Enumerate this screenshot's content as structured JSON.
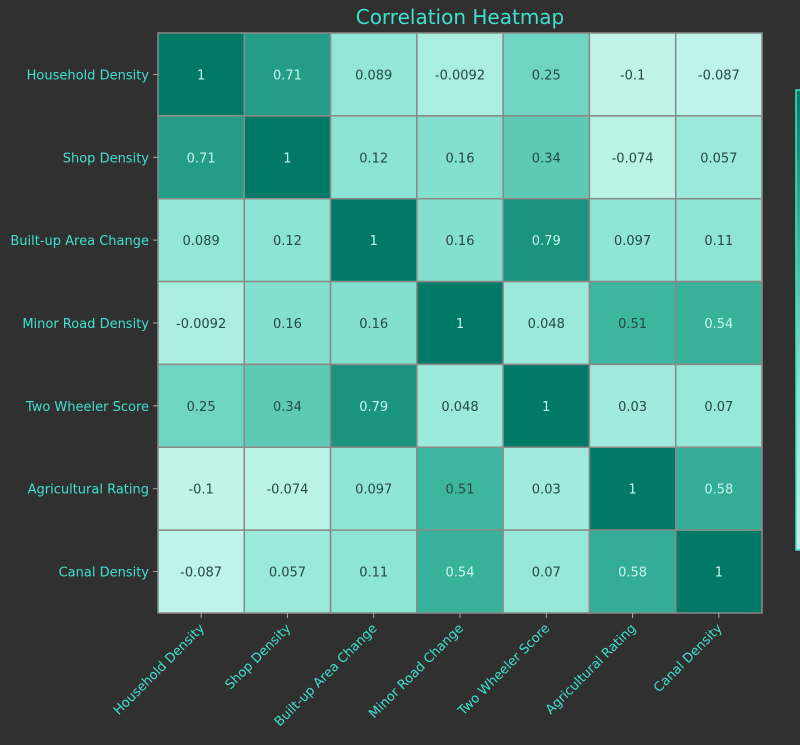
{
  "chart_data": {
    "type": "heatmap",
    "title": "Correlation Heatmap",
    "row_labels": [
      "Household Density",
      "Shop Density",
      "Built-up Area Change",
      "Minor Road Density",
      "Two Wheeler Score",
      "Agricultural Rating",
      "Canal Density"
    ],
    "col_labels": [
      "Household Density",
      "Shop Density",
      "Built-up Area Change",
      "Minor Road Change",
      "Two Wheeler Score",
      "Agricultural Rating",
      "Canal Density"
    ],
    "values": [
      [
        1,
        0.71,
        0.089,
        -0.0092,
        0.25,
        -0.1,
        -0.087
      ],
      [
        0.71,
        1,
        0.12,
        0.16,
        0.34,
        -0.074,
        0.057
      ],
      [
        0.089,
        0.12,
        1,
        0.16,
        0.79,
        0.097,
        0.11
      ],
      [
        -0.0092,
        0.16,
        0.16,
        1,
        0.048,
        0.51,
        0.54
      ],
      [
        0.25,
        0.34,
        0.79,
        0.048,
        1,
        0.03,
        0.07
      ],
      [
        -0.1,
        -0.074,
        0.097,
        0.51,
        0.03,
        1,
        0.58
      ],
      [
        -0.087,
        0.057,
        0.11,
        0.54,
        0.07,
        0.58,
        1
      ]
    ],
    "annotated": true,
    "colormap": [
      "#c0f4eb",
      "#8fe6d6",
      "#3db7a0",
      "#007a66"
    ],
    "label_color": "#40e0d0",
    "background": "#303030"
  }
}
